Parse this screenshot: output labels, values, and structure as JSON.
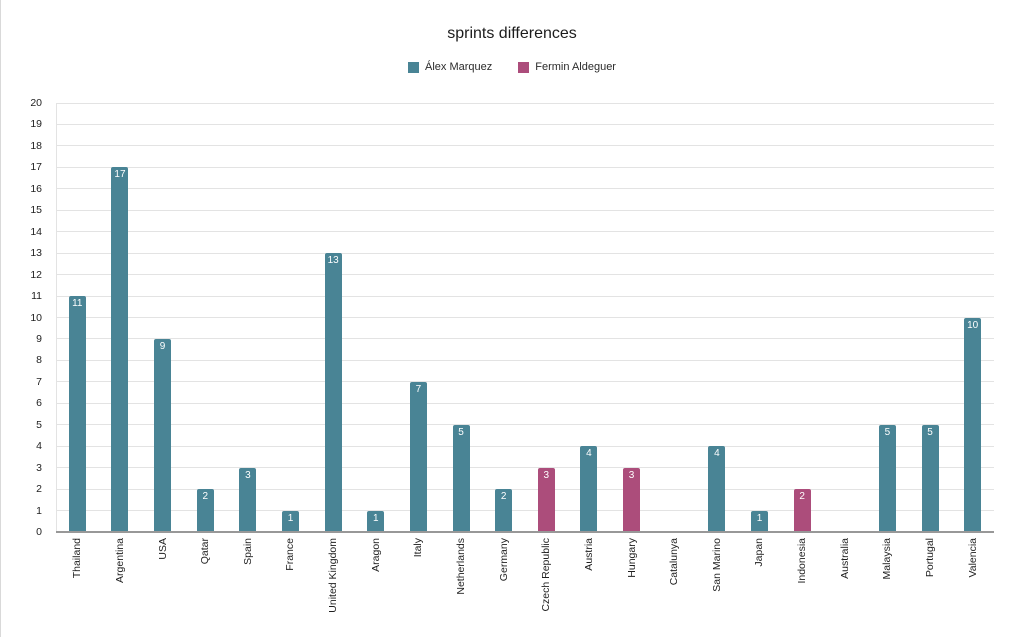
{
  "chart_data": {
    "type": "bar",
    "title": "sprints differences",
    "categories": [
      "Thailand",
      "Argentina",
      "USA",
      "Qatar",
      "Spain",
      "France",
      "United Kingdom",
      "Aragon",
      "Italy",
      "Netherlands",
      "Germany",
      "Czech Republic",
      "Austria",
      "Hungary",
      "Catalunya",
      "San Marino",
      "Japan",
      "Indonesia",
      "Australia",
      "Malaysia",
      "Portugal",
      "Valencia"
    ],
    "series": [
      {
        "name": "Álex Marquez",
        "color": "#498495",
        "values": [
          11,
          17,
          9,
          2,
          3,
          1,
          13,
          1,
          7,
          5,
          2,
          0,
          4,
          0,
          0,
          4,
          1,
          0,
          0,
          5,
          5,
          10
        ]
      },
      {
        "name": "Fermin Aldeguer",
        "color": "#ac4d7b",
        "values": [
          0,
          0,
          0,
          0,
          0,
          0,
          0,
          0,
          0,
          0,
          0,
          3,
          0,
          3,
          0,
          0,
          0,
          2,
          0,
          0,
          0,
          0
        ]
      }
    ],
    "bar_series_index": [
      0,
      0,
      0,
      0,
      0,
      0,
      0,
      0,
      0,
      0,
      0,
      1,
      0,
      1,
      0,
      0,
      0,
      1,
      0,
      0,
      0,
      0
    ],
    "xlabel": "",
    "ylabel": "",
    "ylim": [
      0,
      20
    ],
    "ytick_step": 1,
    "grid": true,
    "legend_position": "top",
    "x_label_rotation": -90,
    "value_label_position": "inside-top"
  },
  "colors": {
    "grid": "#e3e3e3",
    "axis": "#989898",
    "text": "#1f1f1f",
    "value_label": "#ffffff",
    "background": "#ffffff"
  }
}
